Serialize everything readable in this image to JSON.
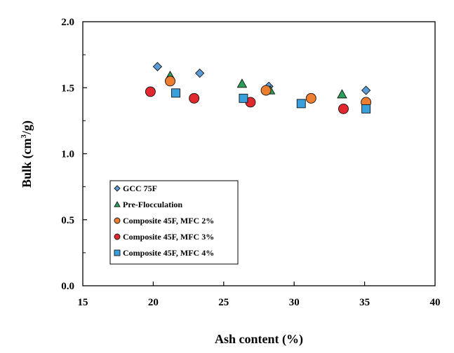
{
  "chart_data": {
    "type": "scatter",
    "xlabel": "Ash content (%)",
    "ylabel": "Bulk (cm³/g)",
    "ylabel_parts": {
      "base": "Bulk (cm",
      "sup": "3",
      "tail": "/g)"
    },
    "xlim": [
      15,
      40
    ],
    "ylim": [
      0.0,
      2.0
    ],
    "xticks": [
      15,
      20,
      25,
      30,
      35,
      40
    ],
    "yticks": [
      0.0,
      0.5,
      1.0,
      1.5,
      2.0
    ],
    "xtick_labels": [
      "15",
      "20",
      "25",
      "30",
      "35",
      "40"
    ],
    "ytick_labels": [
      "0.0",
      "0.5",
      "1.0",
      "1.5",
      "2.0"
    ],
    "legend_position": "bottom-left",
    "series": [
      {
        "name": "GCC 75F",
        "marker": "diamond",
        "color": "#5b9bd5",
        "x": [
          20.3,
          23.3,
          28.2,
          35.1
        ],
        "y": [
          1.66,
          1.61,
          1.51,
          1.48
        ]
      },
      {
        "name": "Pre-Flocculation",
        "marker": "triangle",
        "color": "#2ca05a",
        "x": [
          21.2,
          26.3,
          28.3,
          33.4
        ],
        "y": [
          1.59,
          1.53,
          1.48,
          1.45
        ]
      },
      {
        "name": "Composite 45F, MFC 2%",
        "marker": "circle",
        "color": "#ed7d31",
        "x": [
          21.2,
          28.0,
          31.2,
          35.1
        ],
        "y": [
          1.55,
          1.48,
          1.42,
          1.39
        ]
      },
      {
        "name": "Composite 45F, MFC 3%",
        "marker": "circle",
        "color": "#e0282e",
        "x": [
          19.8,
          22.9,
          26.9,
          33.5
        ],
        "y": [
          1.47,
          1.42,
          1.39,
          1.34
        ]
      },
      {
        "name": "Composite 45F, MFC 4%",
        "marker": "square",
        "color": "#3aa0dc",
        "x": [
          21.6,
          26.4,
          30.5,
          35.1
        ],
        "y": [
          1.46,
          1.42,
          1.38,
          1.34
        ]
      }
    ]
  }
}
